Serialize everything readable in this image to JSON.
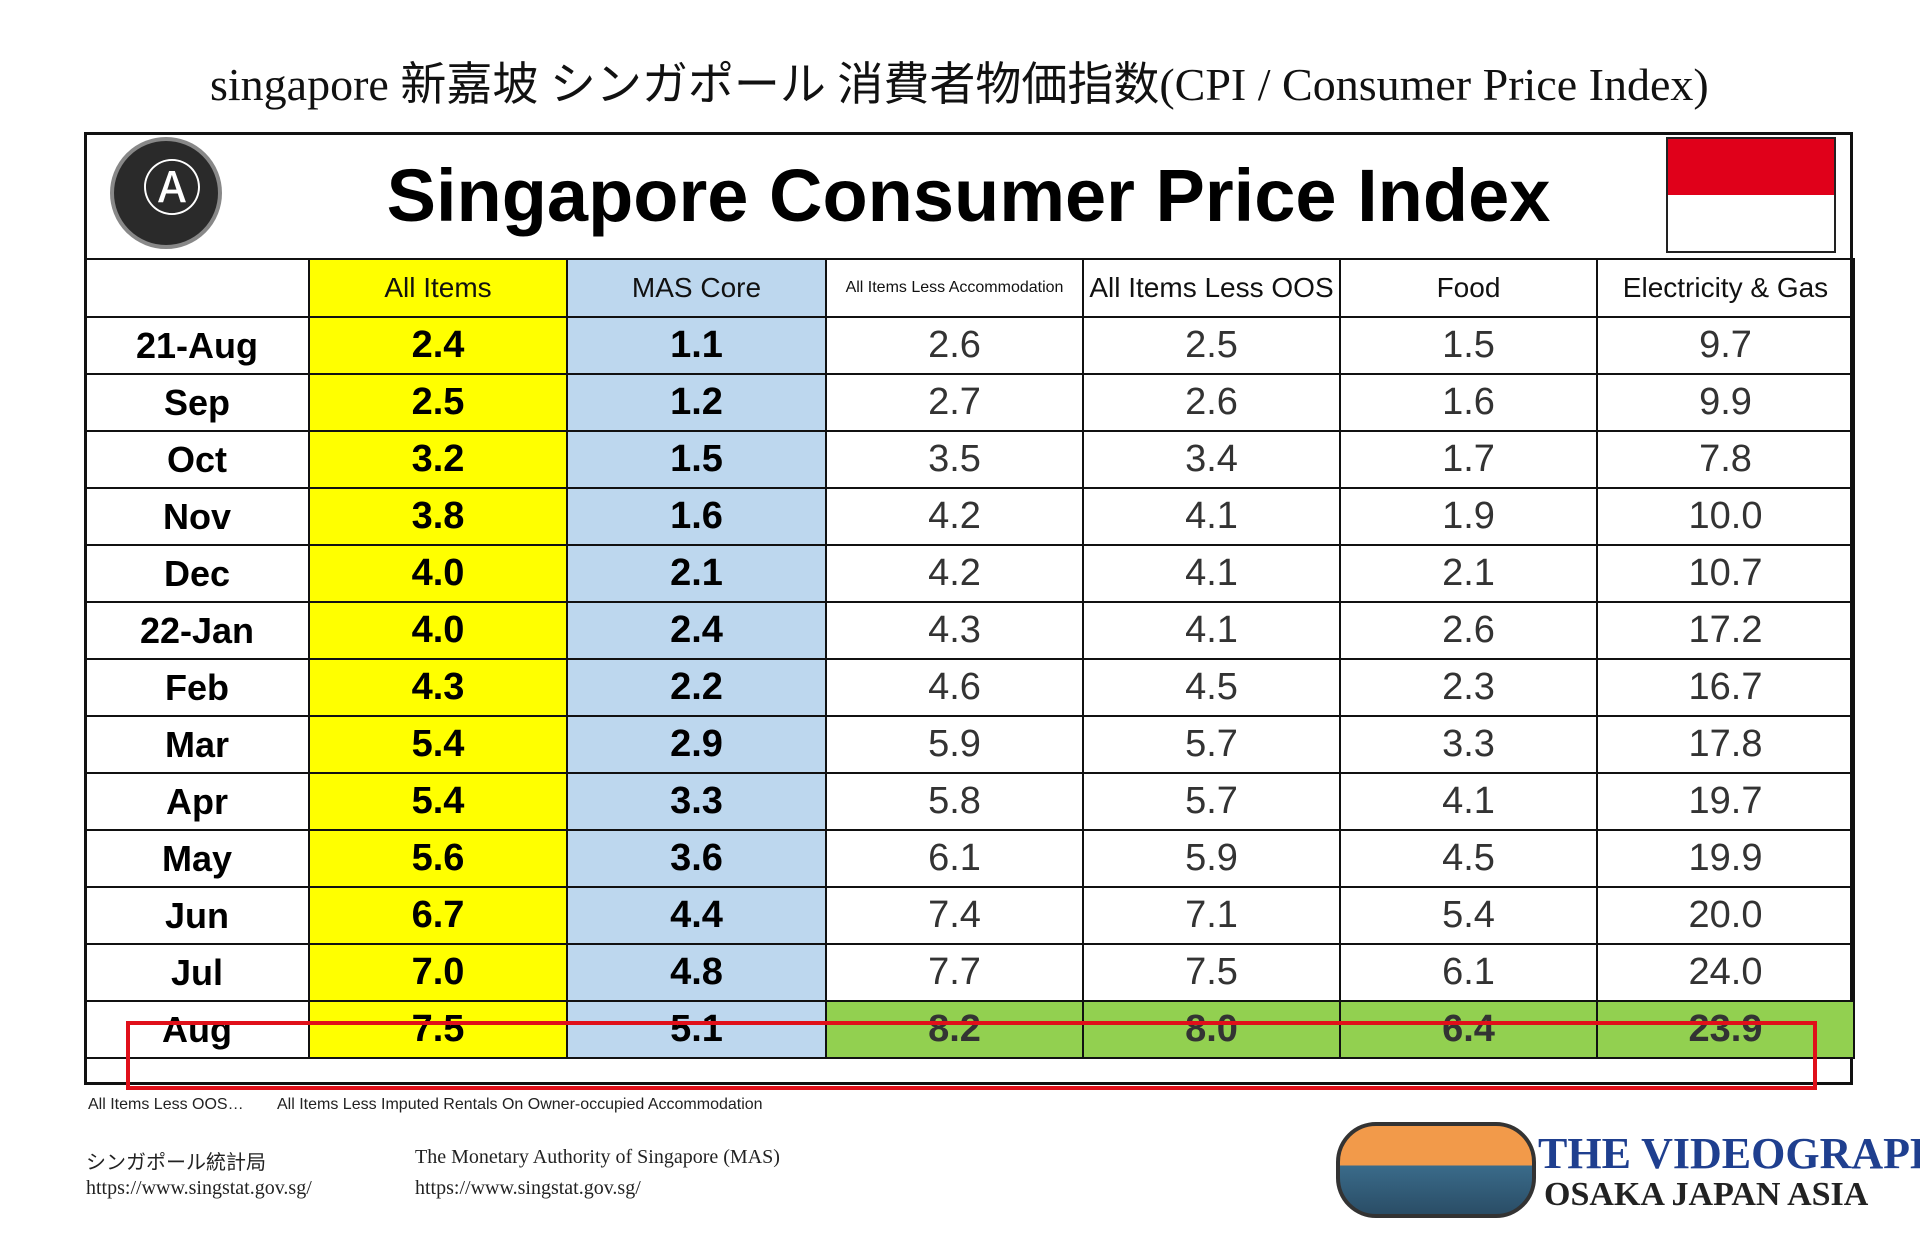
{
  "header": {
    "top_title": "singapore 新嘉坡 シンガポール 消費者物価指数(CPI / Consumer Price Index)",
    "title": "Singapore Consumer Price Index"
  },
  "table": {
    "columns": [
      "All Items",
      "MAS Core",
      "All Items Less Accommodation",
      "All Items Less OOS",
      "Food",
      "Electricity & Gas"
    ],
    "rows": [
      {
        "label": "21-Aug",
        "cells": [
          "2.4",
          "1.1",
          "2.6",
          "2.5",
          "1.5",
          "9.7"
        ]
      },
      {
        "label": "Sep",
        "cells": [
          "2.5",
          "1.2",
          "2.7",
          "2.6",
          "1.6",
          "9.9"
        ]
      },
      {
        "label": "Oct",
        "cells": [
          "3.2",
          "1.5",
          "3.5",
          "3.4",
          "1.7",
          "7.8"
        ]
      },
      {
        "label": "Nov",
        "cells": [
          "3.8",
          "1.6",
          "4.2",
          "4.1",
          "1.9",
          "10.0"
        ]
      },
      {
        "label": "Dec",
        "cells": [
          "4.0",
          "2.1",
          "4.2",
          "4.1",
          "2.1",
          "10.7"
        ]
      },
      {
        "label": "22-Jan",
        "cells": [
          "4.0",
          "2.4",
          "4.3",
          "4.1",
          "2.6",
          "17.2"
        ]
      },
      {
        "label": "Feb",
        "cells": [
          "4.3",
          "2.2",
          "4.6",
          "4.5",
          "2.3",
          "16.7"
        ]
      },
      {
        "label": "Mar",
        "cells": [
          "5.4",
          "2.9",
          "5.9",
          "5.7",
          "3.3",
          "17.8"
        ]
      },
      {
        "label": "Apr",
        "cells": [
          "5.4",
          "3.3",
          "5.8",
          "5.7",
          "4.1",
          "19.7"
        ]
      },
      {
        "label": "May",
        "cells": [
          "5.6",
          "3.6",
          "6.1",
          "5.9",
          "4.5",
          "19.9"
        ]
      },
      {
        "label": "Jun",
        "cells": [
          "6.7",
          "4.4",
          "7.4",
          "7.1",
          "5.4",
          "20.0"
        ]
      },
      {
        "label": "Jul",
        "cells": [
          "7.0",
          "4.8",
          "7.7",
          "7.5",
          "6.1",
          "24.0"
        ]
      },
      {
        "label": "Aug",
        "cells": [
          "7.5",
          "5.1",
          "8.2",
          "8.0",
          "6.4",
          "23.9"
        ]
      }
    ]
  },
  "footnote": {
    "abbr": "All Items Less OOS…",
    "definition": "All Items Less Imputed Rentals On Owner-occupied Accommodation"
  },
  "sources": [
    {
      "name": "シンガポール統計局",
      "url": "https://www.singstat.gov.sg/"
    },
    {
      "name": "The Monetary Authority of Singapore (MAS)",
      "url": "https://www.singstat.gov.sg/"
    }
  ],
  "brand": {
    "line1": "THE VIDEOGRAPHY",
    "line2": "OSAKA JAPAN ASIA"
  }
}
